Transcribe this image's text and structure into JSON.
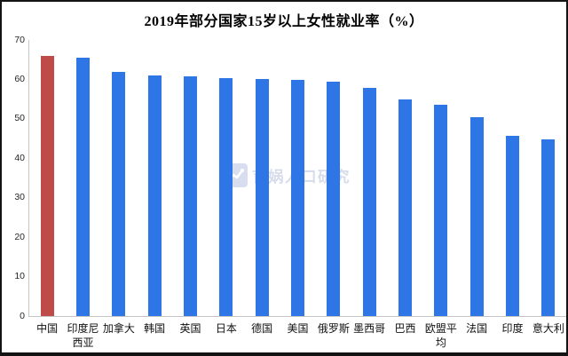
{
  "window": {
    "background": "#ffffff",
    "border_color": "#131313"
  },
  "chart_data": {
    "type": "bar",
    "title": "2019年部分国家15岁以上女性就业率（%）",
    "categories": [
      "中国",
      "印度尼西亚",
      "加拿大",
      "韩国",
      "英国",
      "日本",
      "德国",
      "美国",
      "俄罗斯",
      "墨西哥",
      "巴西",
      "欧盟平均",
      "法国",
      "印度",
      "意大利"
    ],
    "values": [
      66.0,
      65.5,
      62.0,
      61.1,
      60.7,
      60.4,
      60.0,
      59.8,
      59.4,
      57.9,
      55.0,
      53.5,
      50.4,
      45.6,
      44.9
    ],
    "highlight_index": 0,
    "highlight_color": "#be4b48",
    "bar_color": "#2e75e5",
    "xlabel": "",
    "ylabel": "",
    "ylim": [
      0,
      70
    ],
    "yticks": [
      0,
      10,
      20,
      30,
      40,
      50,
      60,
      70
    ],
    "grid": false,
    "legend": null,
    "axis_color": "#c6c6c6",
    "tick_label_color": "#262626"
  },
  "watermark": {
    "icon": "trend-chart-icon",
    "text": "育娲人口研究",
    "color": "#d7dceb"
  }
}
